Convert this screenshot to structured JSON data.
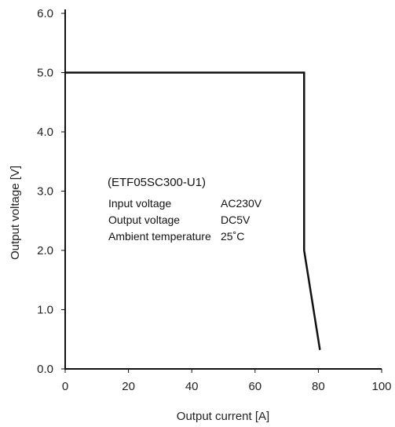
{
  "chart_data": {
    "type": "line",
    "xlabel": "Output current [A]",
    "ylabel": "Output voltage [V]",
    "xlim": [
      0,
      100
    ],
    "ylim": [
      0,
      6
    ],
    "x_ticks": [
      "0",
      "20",
      "40",
      "60",
      "80",
      "100"
    ],
    "y_ticks": [
      "0.0",
      "1.0",
      "2.0",
      "3.0",
      "4.0",
      "5.0",
      "6.0"
    ],
    "grid": false,
    "series": [
      {
        "x": [
          0,
          75.5,
          75.5,
          80.5
        ],
        "y": [
          5.0,
          5.0,
          2.0,
          0.32
        ],
        "color": "#111111"
      }
    ],
    "annotation": {
      "model": "(ETF05SC300-U1)",
      "rows": [
        {
          "label": "Input voltage",
          "value": "AC230V"
        },
        {
          "label": "Output voltage",
          "value": "DC5V"
        },
        {
          "label": "Ambient temperature",
          "value": "25˚C"
        }
      ]
    }
  }
}
